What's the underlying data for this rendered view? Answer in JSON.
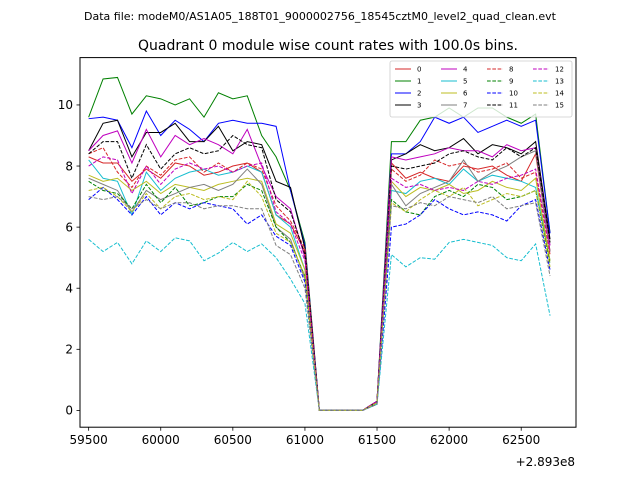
{
  "header": {
    "data_file_label": "Data file: modeM0/AS1A05_188T01_9000002756_18545cztM0_level2_quad_clean.evt"
  },
  "chart_data": {
    "type": "line",
    "title": "Quadrant 0 module wise count rates with 100.0s bins.",
    "xlabel": "",
    "ylabel": "",
    "x_offset_label": "+2.893e8",
    "xlim": [
      59440,
      62880
    ],
    "ylim": [
      -0.55,
      11.55
    ],
    "x_ticks": [
      59500,
      60000,
      60500,
      61000,
      61500,
      62000,
      62500
    ],
    "x_tick_labels": [
      "59500",
      "60000",
      "60500",
      "61000",
      "61500",
      "62000",
      "62500"
    ],
    "y_ticks": [
      0,
      2,
      4,
      6,
      8,
      10
    ],
    "y_tick_labels": [
      "0",
      "2",
      "4",
      "6",
      "8",
      "10"
    ],
    "grid": false,
    "legend_position": "top-right",
    "x": [
      59500,
      59600,
      59700,
      59800,
      59900,
      60000,
      60100,
      60200,
      60300,
      60400,
      60500,
      60600,
      60700,
      60800,
      60900,
      61000,
      61100,
      61200,
      61300,
      61400,
      61500,
      61600,
      61700,
      61800,
      61900,
      62000,
      62100,
      62200,
      62300,
      62400,
      62500,
      62600,
      62700
    ],
    "series": [
      {
        "name": "0",
        "color": "#d62728",
        "dash": "solid",
        "values": [
          8.3,
          8.1,
          8.1,
          7.5,
          7.9,
          7.6,
          8.1,
          8.0,
          7.7,
          7.8,
          8.0,
          8.1,
          7.8,
          6.4,
          6.1,
          5.2,
          0.0,
          0.0,
          0.0,
          0.0,
          0.3,
          8.1,
          7.6,
          7.8,
          7.6,
          7.5,
          8.0,
          7.9,
          8.0,
          7.7,
          7.5,
          8.4,
          5.2
        ]
      },
      {
        "name": "1",
        "color": "#008000",
        "dash": "solid",
        "values": [
          9.6,
          10.85,
          10.9,
          9.7,
          10.3,
          10.2,
          10.0,
          10.2,
          9.6,
          10.4,
          10.2,
          10.3,
          9.0,
          8.3,
          7.2,
          5.5,
          0.0,
          0.0,
          0.0,
          0.0,
          0.3,
          8.8,
          8.8,
          9.5,
          9.6,
          9.9,
          9.6,
          9.9,
          9.9,
          9.6,
          9.4,
          9.7,
          5.8
        ]
      },
      {
        "name": "2",
        "color": "#0000ff",
        "dash": "solid",
        "values": [
          9.55,
          9.6,
          9.5,
          8.6,
          9.8,
          9.0,
          9.5,
          9.2,
          8.8,
          9.4,
          9.5,
          9.4,
          9.4,
          9.3,
          7.2,
          5.4,
          0.0,
          0.0,
          0.0,
          0.0,
          0.3,
          8.4,
          8.4,
          8.8,
          9.6,
          9.4,
          9.6,
          9.1,
          9.3,
          9.5,
          9.3,
          9.5,
          5.8
        ]
      },
      {
        "name": "3",
        "color": "#000000",
        "dash": "solid",
        "values": [
          8.5,
          9.4,
          9.5,
          8.3,
          9.1,
          9.1,
          9.4,
          8.8,
          8.8,
          9.3,
          8.5,
          8.8,
          8.7,
          7.5,
          7.3,
          5.3,
          0.0,
          0.0,
          0.0,
          0.0,
          0.3,
          8.2,
          8.4,
          8.7,
          8.5,
          8.6,
          8.9,
          8.4,
          8.7,
          8.6,
          8.4,
          8.8,
          5.6
        ]
      },
      {
        "name": "4",
        "color": "#bf00bf",
        "dash": "solid",
        "values": [
          8.5,
          9.0,
          9.15,
          8.1,
          9.2,
          8.3,
          9.0,
          8.7,
          8.9,
          8.7,
          8.4,
          9.2,
          8.0,
          7.0,
          6.6,
          5.0,
          0.0,
          0.0,
          0.0,
          0.0,
          0.3,
          8.3,
          8.2,
          8.3,
          8.4,
          8.6,
          8.5,
          8.5,
          8.3,
          8.7,
          8.5,
          8.6,
          5.4
        ]
      },
      {
        "name": "5",
        "color": "#17becf",
        "dash": "solid",
        "values": [
          8.2,
          7.6,
          7.5,
          6.4,
          7.8,
          7.2,
          7.6,
          7.8,
          7.9,
          7.7,
          7.8,
          8.0,
          7.8,
          6.4,
          6.0,
          4.6,
          0.0,
          0.0,
          0.0,
          0.0,
          0.25,
          7.2,
          7.1,
          7.5,
          7.6,
          7.4,
          7.9,
          7.5,
          7.7,
          7.6,
          7.5,
          7.3,
          4.9
        ]
      },
      {
        "name": "6",
        "color": "#bcbd22",
        "dash": "solid",
        "values": [
          7.7,
          7.5,
          7.6,
          7.2,
          7.5,
          7.1,
          7.4,
          7.3,
          7.2,
          7.4,
          7.5,
          7.6,
          7.5,
          6.1,
          5.8,
          4.6,
          0.0,
          0.0,
          0.0,
          0.0,
          0.25,
          7.5,
          7.0,
          7.3,
          7.2,
          7.4,
          7.1,
          7.2,
          7.5,
          7.3,
          7.2,
          7.6,
          4.9
        ]
      },
      {
        "name": "7",
        "color": "#7f7f7f",
        "dash": "solid",
        "values": [
          7.6,
          7.4,
          7.2,
          6.5,
          7.2,
          6.9,
          7.1,
          7.3,
          7.4,
          7.2,
          7.4,
          7.9,
          7.4,
          6.0,
          5.6,
          4.3,
          0.0,
          0.0,
          0.0,
          0.0,
          0.25,
          7.4,
          6.7,
          7.1,
          7.3,
          7.5,
          8.2,
          7.5,
          7.8,
          8.0,
          8.3,
          8.5,
          5.2
        ]
      },
      {
        "name": "8",
        "color": "#d62728",
        "dash": "dashed",
        "values": [
          8.4,
          8.6,
          7.8,
          7.3,
          8.0,
          7.7,
          8.2,
          8.3,
          7.8,
          8.1,
          7.8,
          8.1,
          7.9,
          6.7,
          6.2,
          5.3,
          0.0,
          0.0,
          0.0,
          0.0,
          0.3,
          7.9,
          7.5,
          7.7,
          8.2,
          8.0,
          8.1,
          7.8,
          7.9,
          8.1,
          7.6,
          7.8,
          5.1
        ]
      },
      {
        "name": "9",
        "color": "#008000",
        "dash": "dashed",
        "values": [
          7.5,
          7.2,
          7.1,
          6.6,
          7.4,
          6.8,
          7.3,
          6.7,
          6.8,
          7.0,
          7.0,
          7.4,
          7.2,
          6.0,
          5.5,
          4.4,
          0.0,
          0.0,
          0.0,
          0.0,
          0.25,
          6.9,
          6.5,
          6.4,
          7.0,
          7.2,
          7.0,
          7.4,
          7.3,
          6.9,
          7.0,
          7.2,
          4.8
        ]
      },
      {
        "name": "10",
        "color": "#0000ff",
        "dash": "dashed",
        "values": [
          6.9,
          7.3,
          6.9,
          6.4,
          7.0,
          6.4,
          6.8,
          6.6,
          6.8,
          6.7,
          6.6,
          6.1,
          6.4,
          5.7,
          5.4,
          4.2,
          0.0,
          0.0,
          0.0,
          0.0,
          0.2,
          6.0,
          6.1,
          6.4,
          6.9,
          6.6,
          6.4,
          6.5,
          6.4,
          6.2,
          6.7,
          6.9,
          4.6
        ]
      },
      {
        "name": "11",
        "color": "#000000",
        "dash": "dashed",
        "values": [
          8.4,
          8.8,
          8.8,
          7.6,
          8.7,
          7.9,
          8.4,
          8.6,
          8.4,
          8.5,
          9.0,
          8.7,
          8.6,
          6.9,
          6.5,
          5.1,
          0.0,
          0.0,
          0.0,
          0.0,
          0.3,
          8.0,
          7.9,
          8.0,
          8.1,
          8.4,
          8.5,
          8.3,
          8.2,
          8.6,
          8.3,
          8.6,
          5.5
        ]
      },
      {
        "name": "12",
        "color": "#bf00bf",
        "dash": "dashed",
        "values": [
          8.0,
          8.3,
          8.2,
          7.1,
          8.0,
          7.4,
          7.9,
          8.1,
          7.9,
          8.0,
          7.8,
          8.0,
          8.1,
          6.5,
          6.1,
          4.9,
          0.0,
          0.0,
          0.0,
          0.0,
          0.3,
          7.6,
          7.3,
          7.4,
          7.2,
          7.3,
          7.2,
          7.5,
          7.4,
          7.6,
          7.7,
          7.9,
          5.2
        ]
      },
      {
        "name": "13",
        "color": "#17becf",
        "dash": "dashed",
        "values": [
          5.6,
          5.2,
          5.5,
          4.8,
          5.55,
          5.2,
          5.65,
          5.55,
          4.9,
          5.15,
          5.5,
          5.2,
          5.45,
          5.0,
          4.3,
          3.5,
          0.0,
          0.0,
          0.0,
          0.0,
          0.2,
          5.1,
          4.7,
          5.0,
          4.95,
          5.5,
          5.6,
          5.5,
          5.4,
          5.0,
          4.9,
          5.45,
          3.1
        ]
      },
      {
        "name": "14",
        "color": "#bcbd22",
        "dash": "dashed",
        "values": [
          7.2,
          7.3,
          7.0,
          6.5,
          7.1,
          6.6,
          7.0,
          7.1,
          6.9,
          7.0,
          6.9,
          7.5,
          7.0,
          5.8,
          5.5,
          4.4,
          0.0,
          0.0,
          0.0,
          0.0,
          0.25,
          6.8,
          6.5,
          6.9,
          7.2,
          7.0,
          7.3,
          6.7,
          6.9,
          7.1,
          7.0,
          7.2,
          4.7
        ]
      },
      {
        "name": "15",
        "color": "#7f7f7f",
        "dash": "dashed",
        "values": [
          7.0,
          6.9,
          7.0,
          6.6,
          6.9,
          6.6,
          6.8,
          6.8,
          6.6,
          6.7,
          6.7,
          6.6,
          6.6,
          5.4,
          5.1,
          4.0,
          0.0,
          0.0,
          0.0,
          0.0,
          0.2,
          6.7,
          6.6,
          6.8,
          6.7,
          7.0,
          6.9,
          6.8,
          7.0,
          6.6,
          6.7,
          6.8,
          4.4
        ]
      }
    ]
  }
}
